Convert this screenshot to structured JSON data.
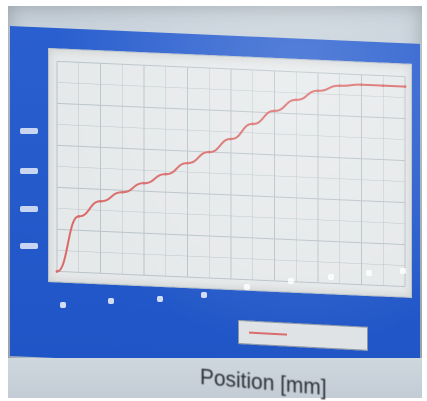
{
  "photo": {
    "subject": "monitor-showing-line-plot",
    "caption": "Position [mm]"
  },
  "colors": {
    "frame_blue": "#2256c9",
    "plot_bg": "#e6e9ea",
    "curve": "#d96a6a",
    "grid": "#b9c3c9"
  },
  "chart_data": {
    "type": "line",
    "x": [
      0,
      0.5,
      1,
      1.5,
      2,
      2.5,
      3,
      3.5,
      4,
      4.5,
      5,
      5.5,
      6,
      6.5,
      7,
      7.5,
      8
    ],
    "series": [
      {
        "values": [
          0,
          0.28,
          0.36,
          0.41,
          0.46,
          0.51,
          0.57,
          0.63,
          0.7,
          0.78,
          0.85,
          0.91,
          0.96,
          0.99,
          1.0,
          1.0,
          1.0
        ]
      }
    ],
    "xlim": [
      0,
      8
    ],
    "ylim": [
      0,
      1.05
    ],
    "grid": true,
    "legend": "bottom-right"
  }
}
